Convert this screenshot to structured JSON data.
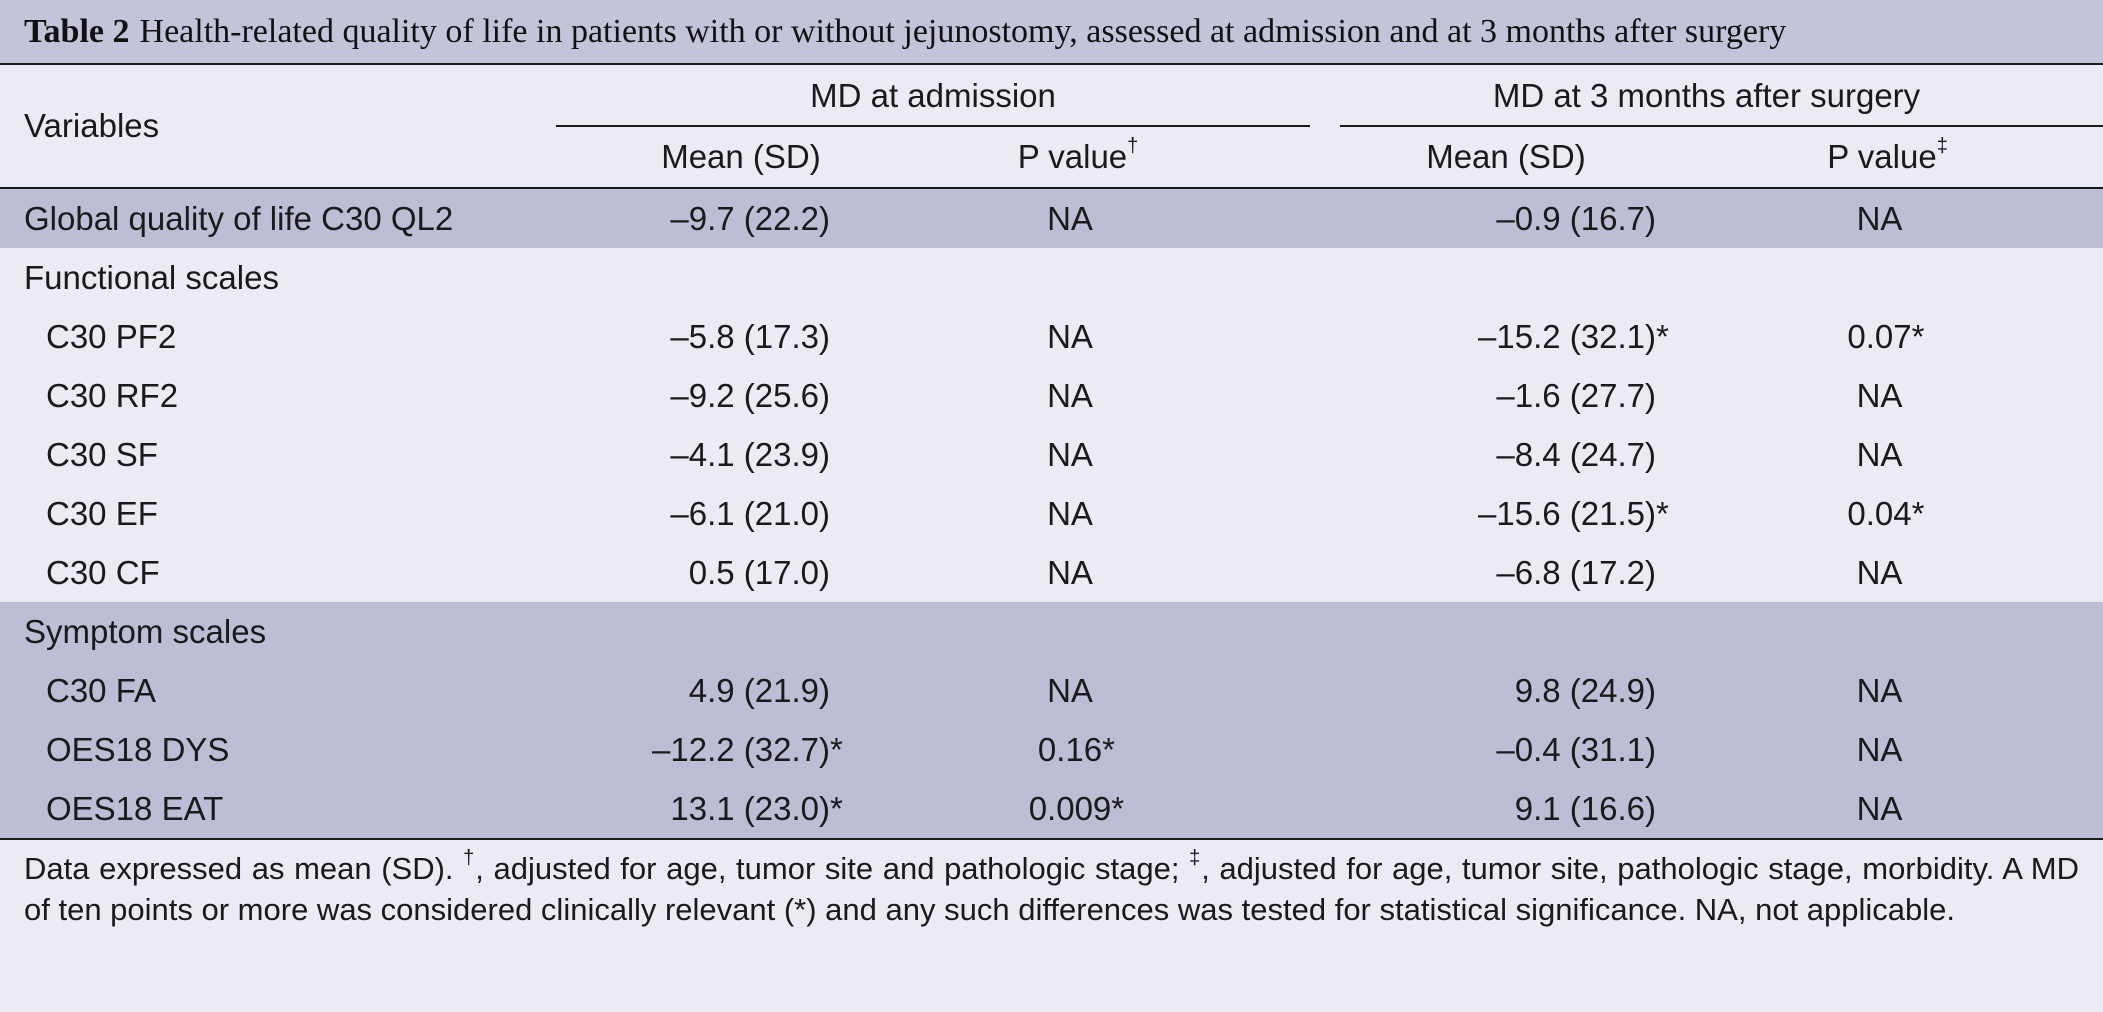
{
  "caption": {
    "label": "Table 2",
    "text": "Health-related quality of life in patients with or without jejunostomy, assessed at admission and at 3 months after surgery"
  },
  "header": {
    "variables": "Variables",
    "group1": "MD at admission",
    "group2": "MD at 3 months after surgery",
    "mean_sd": "Mean (SD)",
    "p_value": "P value",
    "p_mark1": "†",
    "p_mark2": "‡"
  },
  "rows": [
    {
      "label": "Global quality of life C30 QL2",
      "indent": false,
      "shade": true,
      "m1": "–9.7 (22.2)",
      "m1_ast": "",
      "p1": "NA",
      "p1_ast": "",
      "m2": "–0.9 (16.7)",
      "m2_ast": "",
      "p2": "NA",
      "p2_ast": ""
    },
    {
      "label": "Functional scales",
      "indent": false,
      "shade": false,
      "m1": "",
      "m1_ast": "",
      "p1": "",
      "p1_ast": "",
      "m2": "",
      "m2_ast": "",
      "p2": "",
      "p2_ast": ""
    },
    {
      "label": "C30 PF2",
      "indent": true,
      "shade": false,
      "m1": "–5.8 (17.3)",
      "m1_ast": "",
      "p1": "NA",
      "p1_ast": "",
      "m2": "–15.2 (32.1)",
      "m2_ast": "*",
      "p2": "0.07",
      "p2_ast": "*"
    },
    {
      "label": "C30 RF2",
      "indent": true,
      "shade": false,
      "m1": "–9.2 (25.6)",
      "m1_ast": "",
      "p1": "NA",
      "p1_ast": "",
      "m2": "–1.6 (27.7)",
      "m2_ast": "",
      "p2": "NA",
      "p2_ast": ""
    },
    {
      "label": "C30 SF",
      "indent": true,
      "shade": false,
      "m1": "–4.1 (23.9)",
      "m1_ast": "",
      "p1": "NA",
      "p1_ast": "",
      "m2": "–8.4 (24.7)",
      "m2_ast": "",
      "p2": "NA",
      "p2_ast": ""
    },
    {
      "label": "C30 EF",
      "indent": true,
      "shade": false,
      "m1": "–6.1 (21.0)",
      "m1_ast": "",
      "p1": "NA",
      "p1_ast": "",
      "m2": "–15.6 (21.5)",
      "m2_ast": "*",
      "p2": "0.04",
      "p2_ast": "*"
    },
    {
      "label": "C30 CF",
      "indent": true,
      "shade": false,
      "m1": "0.5 (17.0)",
      "m1_ast": "",
      "p1": "NA",
      "p1_ast": "",
      "m2": "–6.8 (17.2)",
      "m2_ast": "",
      "p2": "NA",
      "p2_ast": ""
    },
    {
      "label": "Symptom scales",
      "indent": false,
      "shade": true,
      "m1": "",
      "m1_ast": "",
      "p1": "",
      "p1_ast": "",
      "m2": "",
      "m2_ast": "",
      "p2": "",
      "p2_ast": ""
    },
    {
      "label": "C30 FA",
      "indent": true,
      "shade": true,
      "m1": "4.9 (21.9)",
      "m1_ast": "",
      "p1": "NA",
      "p1_ast": "",
      "m2": "9.8 (24.9)",
      "m2_ast": "",
      "p2": "NA",
      "p2_ast": ""
    },
    {
      "label": "OES18 DYS",
      "indent": true,
      "shade": true,
      "m1": "–12.2 (32.7)",
      "m1_ast": "*",
      "p1": "0.16",
      "p1_ast": "*",
      "m2": "–0.4 (31.1)",
      "m2_ast": "",
      "p2": "NA",
      "p2_ast": ""
    },
    {
      "label": "OES18 EAT",
      "indent": true,
      "shade": true,
      "m1": "13.1 (23.0)",
      "m1_ast": "*",
      "p1": "0.009",
      "p1_ast": "*",
      "m2": "9.1 (16.6)",
      "m2_ast": "",
      "p2": "NA",
      "p2_ast": ""
    }
  ],
  "footnote": {
    "part1": "Data expressed as mean (SD). ",
    "mark1": "†",
    "part2": ", adjusted for age, tumor site and pathologic stage; ",
    "mark2": "‡",
    "part3": ", adjusted for age, tumor site, pathologic stage, morbidity. A MD of ten points or more was considered clinically relevant (*) and any such differences was tested for statistical significance. NA, not applicable."
  },
  "colors": {
    "background": "#eaebf3",
    "caption_band": "#c3c4da",
    "shaded_row": "#bdbed6",
    "rule": "#1a1a1a"
  }
}
